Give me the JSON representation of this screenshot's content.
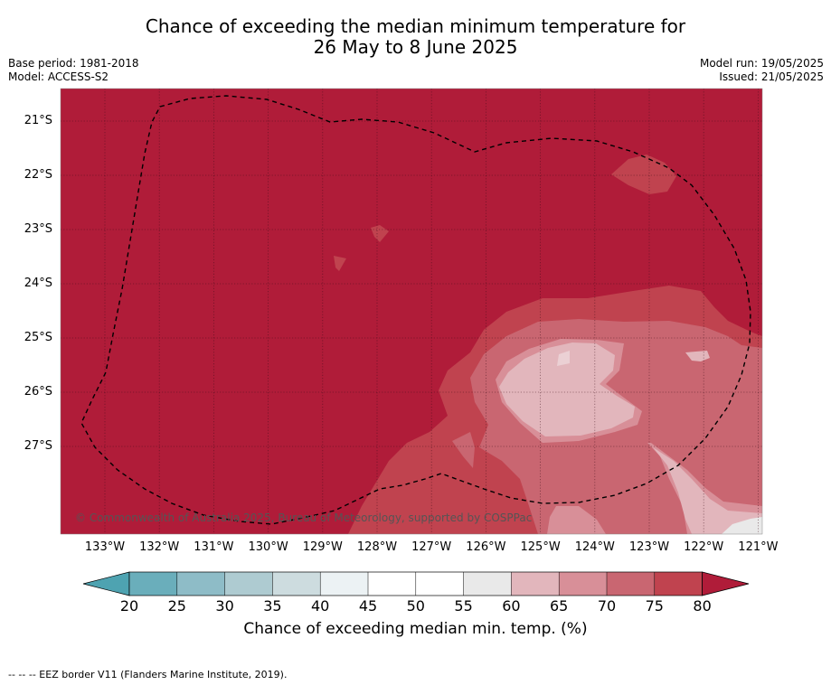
{
  "title_line1": "Chance of exceeding the median minimum temperature for",
  "title_line2": "26 May to 8 June 2025",
  "base_period": "Base period: 1981-2018",
  "model": "Model: ACCESS-S2",
  "model_run": "Model run: 19/05/2025",
  "issued": "Issued: 21/05/2025",
  "lat_labels": [
    "21°S",
    "22°S",
    "23°S",
    "24°S",
    "25°S",
    "26°S",
    "27°S"
  ],
  "lon_labels": [
    "133°W",
    "132°W",
    "131°W",
    "130°W",
    "129°W",
    "128°W",
    "127°W",
    "126°W",
    "125°W",
    "124°W",
    "123°W",
    "122°W",
    "121°W"
  ],
  "copyright": "© Commonwealth of Australia 2025, Bureau of Meteorology, supported by COSPPac",
  "colorbar": {
    "ticks": [
      "20",
      "25",
      "30",
      "35",
      "40",
      "45",
      "50",
      "55",
      "60",
      "65",
      "70",
      "75",
      "80"
    ],
    "label": "Chance of exceeding median min. temp. (%)",
    "colors": [
      "#6aaebb",
      "#8ebcc7",
      "#aecbd1",
      "#cddcdf",
      "#ecf2f4",
      "#ffffff",
      "#ffffff",
      "#e9e9e9",
      "#e2b6bc",
      "#d88f98",
      "#c96671",
      "#c0434f"
    ],
    "under_color": "#4ea3b1",
    "over_color": "#b01c39"
  },
  "legend_text": "--  --  -- EEZ border V11 (Flanders Marine Institute, 2019)."
}
